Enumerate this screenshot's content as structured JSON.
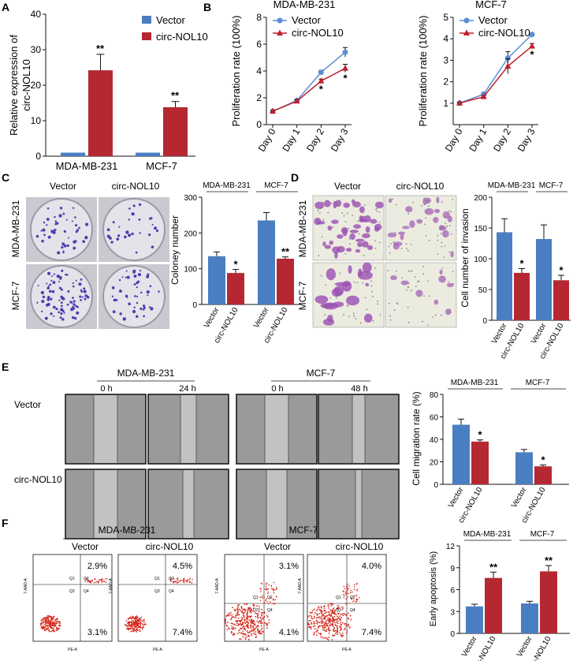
{
  "panel_labels": [
    "A",
    "B",
    "C",
    "D",
    "E",
    "F"
  ],
  "colors": {
    "vector": "#4a7ec2",
    "circ": "#b52832",
    "blue_line": "#5b8ed6",
    "red_line": "#c0202a"
  },
  "legend": {
    "vector": "Vector",
    "circ": "circ-NOL10"
  },
  "chart_data": [
    {
      "id": "A",
      "type": "bar",
      "ylabel": "Relative expression of circ-NOL10",
      "ylim": [
        0,
        40
      ],
      "yticks": [
        0,
        10,
        20,
        30,
        40
      ],
      "categories": [
        "MDA-MB-231",
        "MCF-7"
      ],
      "series": [
        {
          "name": "Vector",
          "values": [
            1,
            1
          ],
          "err": [
            0,
            0
          ]
        },
        {
          "name": "circ-NOL10",
          "values": [
            24.2,
            13.8
          ],
          "err": [
            4.5,
            1.6
          ]
        }
      ],
      "sig": [
        "**",
        "**"
      ]
    },
    {
      "id": "B1",
      "type": "line",
      "title": "MDA-MB-231",
      "ylabel": "Proliferation rate (100%)",
      "ylim": [
        0,
        8
      ],
      "yticks": [
        0,
        2,
        4,
        6,
        8
      ],
      "x": [
        "Day 0",
        "Day 1",
        "Day 2",
        "Day 3"
      ],
      "series": [
        {
          "name": "Vector",
          "values": [
            1.0,
            1.8,
            3.9,
            5.4
          ],
          "err": [
            0.05,
            0.1,
            0.15,
            0.35
          ]
        },
        {
          "name": "circ-NOL10",
          "values": [
            1.0,
            1.75,
            3.25,
            4.2
          ],
          "err": [
            0.05,
            0.1,
            0.15,
            0.3
          ]
        }
      ],
      "sig": [
        "",
        "",
        "*",
        "*"
      ]
    },
    {
      "id": "B2",
      "type": "line",
      "title": "MCF-7",
      "ylabel": "Proliferation rate (100%)",
      "ylim": [
        0,
        5
      ],
      "yticks": [
        1,
        2,
        3,
        4,
        5
      ],
      "x": [
        "Day 0",
        "Day 1",
        "Day 2",
        "Day 3"
      ],
      "series": [
        {
          "name": "Vector",
          "values": [
            1.0,
            1.42,
            3.1,
            4.2
          ],
          "err": [
            0.05,
            0.08,
            0.3,
            0.05
          ]
        },
        {
          "name": "circ-NOL10",
          "values": [
            1.0,
            1.3,
            2.72,
            3.66
          ],
          "err": [
            0.05,
            0.05,
            0.35,
            0.12
          ]
        }
      ],
      "sig": [
        "",
        "",
        "",
        "*"
      ]
    },
    {
      "id": "C",
      "type": "bar",
      "ylabel": "Coloney number",
      "ylim": [
        0,
        300
      ],
      "yticks": [
        0,
        100,
        200,
        300
      ],
      "groups": [
        "MDA-MB-231",
        "MCF-7"
      ],
      "categories": [
        "Vector",
        "circ-NOL10",
        "Vector",
        "circ-NOL10"
      ],
      "values": [
        135,
        88,
        235,
        128
      ],
      "err": [
        12,
        10,
        22,
        5
      ],
      "sig": [
        "",
        "*",
        "",
        "**"
      ]
    },
    {
      "id": "D",
      "type": "bar",
      "ylabel": "Cell number of invasion",
      "ylim": [
        0,
        200
      ],
      "yticks": [
        0,
        50,
        100,
        150,
        200
      ],
      "groups": [
        "MDA-MB-231",
        "MCF-7"
      ],
      "categories": [
        "Vector",
        "circ-NOL10",
        "Vector",
        "circ-NOL10"
      ],
      "values": [
        143,
        77,
        132,
        65
      ],
      "err": [
        22,
        7,
        23,
        8
      ],
      "sig": [
        "",
        "*",
        "",
        "*"
      ]
    },
    {
      "id": "E",
      "type": "bar",
      "ylabel": "Cell migration rate (%)",
      "ylim": [
        0,
        80
      ],
      "yticks": [
        0,
        20,
        40,
        60,
        80
      ],
      "groups": [
        "MDA-MB-231",
        "MCF-7"
      ],
      "categories": [
        "Vector",
        "circ-NOL10",
        "Vector",
        "circ-NOL10"
      ],
      "values": [
        53,
        38,
        28.5,
        16
      ],
      "err": [
        5,
        1.5,
        2.5,
        1.2
      ],
      "sig": [
        "",
        "*",
        "",
        "*"
      ]
    },
    {
      "id": "F",
      "type": "bar",
      "ylabel": "Early apoptosis (%)",
      "ylim": [
        0,
        12
      ],
      "yticks": [
        0,
        3,
        6,
        9,
        12
      ],
      "groups": [
        "MDA-MB-231",
        "MCF-7"
      ],
      "categories": [
        "Vector",
        "circ-NOL10",
        "Vector",
        "circ-NOL10"
      ],
      "values": [
        3.7,
        7.6,
        4.1,
        8.5
      ],
      "err": [
        0.3,
        0.8,
        0.3,
        0.8
      ],
      "sig": [
        "",
        "**",
        "",
        "**"
      ]
    }
  ],
  "images": {
    "row_labels_cd": [
      "MDA-MB-231",
      "MCF-7"
    ],
    "col_labels": [
      "Vector",
      "circ-NOL10"
    ],
    "e_lines": [
      "MDA-MB-231",
      "MCF-7"
    ],
    "e_times": [
      "0 h",
      "24 h",
      "0 h",
      "48 h"
    ],
    "e_rows": [
      "Vector",
      "circ-NOL10"
    ],
    "f_lines": [
      "MDA-MB-231",
      "MCF-7"
    ],
    "f_cols": [
      "Vector",
      "circ-NOL10",
      "Vector",
      "circ-NOL10"
    ],
    "f_upper": [
      "2.9%",
      "4.5%",
      "3.1%",
      "4.0%"
    ],
    "f_lower": [
      "3.1%",
      "7.4%",
      "4.1%",
      "7.4%"
    ],
    "f_quads": [
      "Q1",
      "Q2",
      "Q3",
      "Q4"
    ],
    "f_axis_y": "7-AAD-A",
    "f_axis_x": "PE-A"
  }
}
